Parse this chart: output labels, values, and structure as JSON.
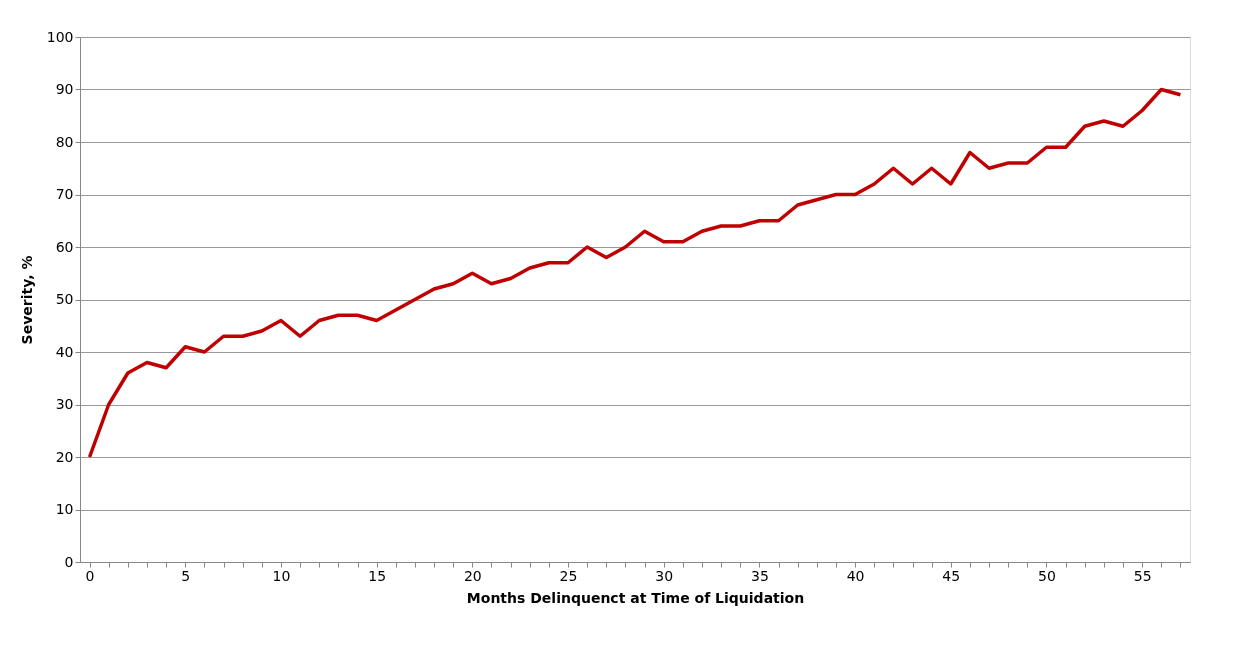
{
  "chart_data": {
    "type": "line",
    "xlabel": "Months Delinquenct at Time of Liquidation",
    "ylabel": "Severity, %",
    "categories": [
      "0",
      null,
      null,
      null,
      null,
      "5",
      null,
      null,
      null,
      null,
      "10",
      null,
      null,
      null,
      null,
      "15",
      null,
      null,
      null,
      null,
      "20",
      null,
      null,
      null,
      null,
      "25",
      null,
      null,
      null,
      null,
      "30",
      null,
      null,
      null,
      null,
      "35",
      null,
      null,
      null,
      null,
      "40",
      null,
      null,
      null,
      null,
      "45",
      null,
      null,
      null,
      null,
      "50",
      null,
      null,
      null,
      null,
      "55",
      null,
      null
    ],
    "series": [
      {
        "color": "#c00000",
        "values": [
          20,
          30,
          36,
          38,
          37,
          41,
          40,
          43,
          43,
          44,
          46,
          43,
          46,
          47,
          47,
          46,
          48,
          50,
          52,
          53,
          55,
          53,
          54,
          56,
          57,
          57,
          60,
          58,
          60,
          63,
          61,
          61,
          63,
          64,
          64,
          65,
          65,
          68,
          69,
          70,
          70,
          72,
          75,
          72,
          75,
          72,
          78,
          75,
          76,
          76,
          79,
          79,
          83,
          84,
          83,
          86,
          90,
          89
        ]
      }
    ],
    "ylim": [
      0,
      100
    ],
    "yticks": [
      0,
      10,
      20,
      30,
      40,
      50,
      60,
      70,
      80,
      90,
      100
    ],
    "grid": "y",
    "legend": false,
    "marker": "none",
    "line_style": "solid"
  }
}
